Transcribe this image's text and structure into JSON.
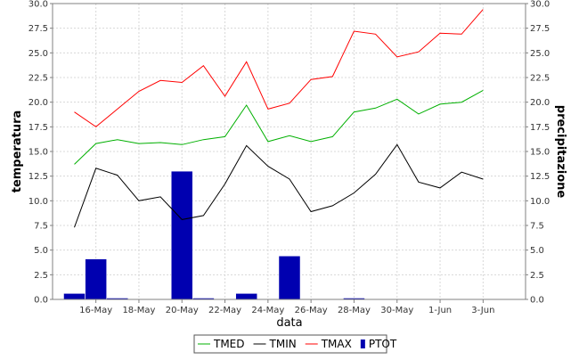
{
  "chart_data": {
    "type": "line",
    "x": [
      "15-May",
      "16-May",
      "17-May",
      "18-May",
      "19-May",
      "20-May",
      "21-May",
      "22-May",
      "23-May",
      "24-May",
      "25-May",
      "26-May",
      "27-May",
      "28-May",
      "29-May",
      "30-May",
      "31-May",
      "1-Jun",
      "2-Jun",
      "3-Jun"
    ],
    "x_tick_labels": [
      "16-May",
      "18-May",
      "20-May",
      "22-May",
      "24-May",
      "26-May",
      "28-May",
      "30-May",
      "1-Jun",
      "3-Jun"
    ],
    "xlabel": "data",
    "ylabel_left": "temperatura",
    "ylabel_right": "precipitazione",
    "ylim": [
      0,
      30
    ],
    "y_ticks": [
      "0.0",
      "2.5",
      "5.0",
      "7.5",
      "10.0",
      "12.5",
      "15.0",
      "17.5",
      "20.0",
      "22.5",
      "25.0",
      "27.5",
      "30.0"
    ],
    "grid": true,
    "legend_position": "bottom",
    "series": [
      {
        "name": "TMED",
        "type": "line",
        "color": "#00b000",
        "values": [
          13.7,
          15.8,
          16.2,
          15.8,
          15.9,
          15.7,
          16.2,
          16.5,
          19.7,
          16.0,
          16.6,
          16.0,
          16.5,
          19.0,
          19.4,
          20.3,
          18.8,
          19.8,
          20.0,
          21.2
        ]
      },
      {
        "name": "TMIN",
        "type": "line",
        "color": "#000000",
        "values": [
          7.3,
          13.3,
          12.6,
          10.0,
          10.4,
          8.1,
          8.5,
          11.7,
          15.6,
          13.5,
          12.2,
          8.9,
          9.5,
          10.8,
          12.7,
          15.7,
          11.9,
          11.3,
          12.9,
          12.2
        ]
      },
      {
        "name": "TMAX",
        "type": "line",
        "color": "#ff0000",
        "values": [
          19.0,
          17.5,
          19.3,
          21.1,
          22.2,
          22.0,
          23.7,
          20.6,
          24.1,
          19.3,
          19.9,
          22.3,
          22.6,
          27.2,
          26.9,
          24.6,
          25.1,
          27.0,
          26.9,
          29.4
        ]
      },
      {
        "name": "PTOT",
        "type": "bar",
        "color": "#0000b0",
        "values": [
          0.6,
          4.1,
          0.1,
          0,
          0,
          13.0,
          0.1,
          0,
          0.6,
          0,
          4.4,
          0,
          0,
          0.1,
          0,
          0,
          0,
          0,
          0,
          0
        ]
      }
    ]
  }
}
